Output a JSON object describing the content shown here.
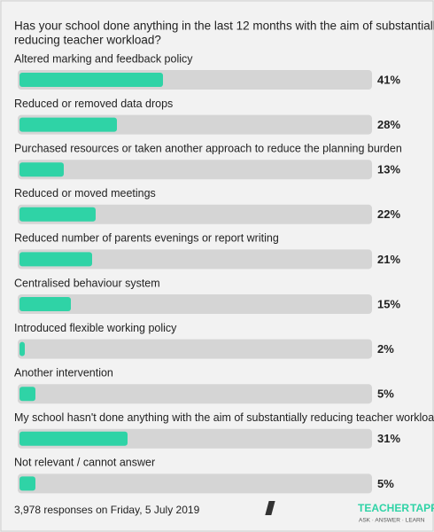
{
  "chart_data": {
    "type": "hbar",
    "title": [
      "Has your school done anything in the last 12 months with the aim of substantially",
      "reducing teacher workload?"
    ],
    "categories": [
      "Altered marking and feedback policy",
      "Reduced or removed data drops",
      "Purchased resources or taken another approach to reduce the planning burden",
      "Reduced or moved meetings",
      "Reduced number of parents evenings or report writing",
      "Centralised behaviour system",
      "Introduced flexible working policy",
      "Another intervention",
      "My school hasn't done anything with the aim of substantially reducing teacher workload",
      "Not relevant / cannot answer"
    ],
    "values": [
      41,
      28,
      13,
      22,
      21,
      15,
      2,
      5,
      31,
      5
    ],
    "value_labels": [
      "41%",
      "28%",
      "13%",
      "22%",
      "21%",
      "15%",
      "2%",
      "5%",
      "31%",
      "5%"
    ],
    "color": "#2fd3a6",
    "xlim": [
      0,
      100
    ]
  },
  "footer": "3,978 responses on Friday, 5 July 2019",
  "logo": {
    "words": [
      "TEACHER",
      "TAPP"
    ],
    "tagline": "ASK · ANSWER · LEARN"
  }
}
